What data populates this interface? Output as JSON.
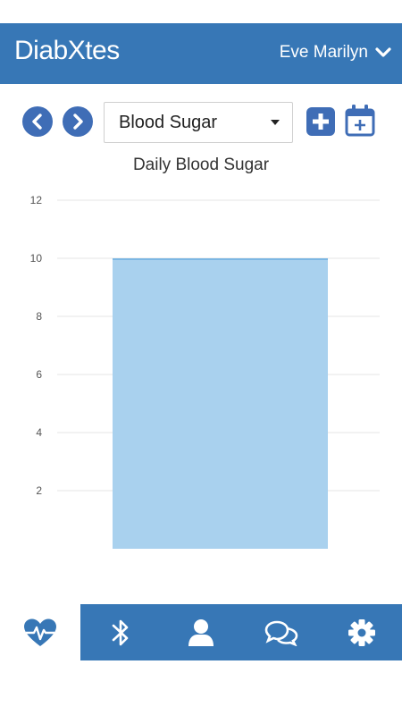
{
  "header": {
    "logo_text": "DiabXtes",
    "user_name": "Eve Marilyn"
  },
  "toolbar": {
    "prev_icon": "chevron-left-icon",
    "next_icon": "chevron-right-icon",
    "metric_select_value": "Blood Sugar",
    "add_icon": "plus-square-icon",
    "calendar_icon": "calendar-add-icon"
  },
  "chart_data": {
    "type": "bar",
    "title": "Daily Blood Sugar",
    "categories": [
      ""
    ],
    "values": [
      10
    ],
    "yticks": [
      2,
      4,
      6,
      8,
      10,
      12
    ],
    "ylim": [
      0,
      12
    ],
    "grid": true,
    "bar_color": "#a9d1ee",
    "bar_border_color": "#7db7e3"
  },
  "tabs": [
    {
      "name": "health",
      "icon": "heart-pulse-icon",
      "active": true
    },
    {
      "name": "bluetooth",
      "icon": "bluetooth-icon",
      "active": false
    },
    {
      "name": "profile",
      "icon": "user-icon",
      "active": false
    },
    {
      "name": "messages",
      "icon": "chat-icon",
      "active": false
    },
    {
      "name": "settings",
      "icon": "gear-icon",
      "active": false
    }
  ],
  "colors": {
    "brand": "#3777b6",
    "button": "#3f6db6"
  }
}
